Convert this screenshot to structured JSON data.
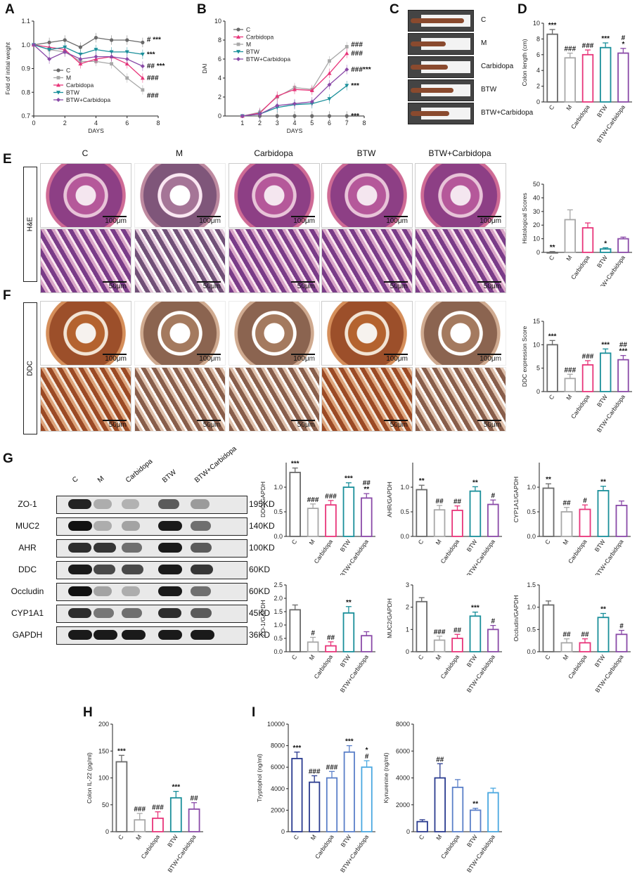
{
  "panel_labels": [
    "A",
    "B",
    "C",
    "D",
    "E",
    "F",
    "G",
    "H",
    "I"
  ],
  "colors": {
    "C": "#6a6a6a",
    "M": "#a8a8a8",
    "Carbidopa": "#e8357a",
    "BTW": "#1a8f9a",
    "BTW+Carbidopa": "#8a4aa8",
    "navy": "#2a3b8f",
    "blue": "#5a7fc8",
    "light_blue": "#4aa8e0"
  },
  "chart_data": [
    {
      "id": "A",
      "type": "line",
      "xlabel": "DAYS",
      "ylabel": "Fold of initial weight",
      "xlim": [
        0,
        8
      ],
      "ylim": [
        0.7,
        1.1
      ],
      "xticks": [
        "0",
        "2",
        "4",
        "6",
        "8"
      ],
      "yticks": [
        "0.7",
        "0.8",
        "0.9",
        "1.0",
        "1.1"
      ],
      "x": [
        0,
        1,
        2,
        3,
        4,
        5,
        6,
        7
      ],
      "legend": [
        "C",
        "M",
        "Carbidopa",
        "BTW",
        "BTW+Carbidopa"
      ],
      "series": [
        {
          "name": "C",
          "values": [
            1.0,
            1.01,
            1.02,
            0.99,
            1.03,
            1.02,
            1.02,
            1.01
          ],
          "sig": "# ***"
        },
        {
          "name": "M",
          "values": [
            1.0,
            0.98,
            0.97,
            0.93,
            0.93,
            0.92,
            0.86,
            0.81
          ],
          "sig": "###"
        },
        {
          "name": "Carbidopa",
          "values": [
            1.0,
            0.99,
            0.98,
            0.92,
            0.94,
            0.95,
            0.92,
            0.86
          ],
          "sig": "###"
        },
        {
          "name": "BTW",
          "values": [
            1.0,
            0.98,
            0.99,
            0.96,
            0.98,
            0.97,
            0.97,
            0.96
          ],
          "sig": "***"
        },
        {
          "name": "BTW+Carbidopa",
          "values": [
            1.0,
            0.94,
            0.97,
            0.94,
            0.95,
            0.95,
            0.94,
            0.91
          ],
          "sig": "## ***"
        }
      ]
    },
    {
      "id": "B",
      "type": "line",
      "xlabel": "DAYS",
      "ylabel": "DAI",
      "xlim": [
        0,
        8
      ],
      "ylim": [
        0,
        10
      ],
      "xticks": [
        "1",
        "2",
        "3",
        "4",
        "5",
        "6",
        "7",
        "8"
      ],
      "yticks": [
        "0",
        "2",
        "4",
        "6",
        "8",
        "10"
      ],
      "x": [
        1,
        2,
        3,
        4,
        5,
        6,
        7
      ],
      "legend": [
        "C",
        "Carbidopa",
        "M",
        "BTW",
        "BTW+Carbidopa"
      ],
      "series": [
        {
          "name": "C",
          "values": [
            0,
            0,
            0,
            0,
            0,
            0,
            0
          ],
          "sig": "***"
        },
        {
          "name": "M",
          "values": [
            0,
            0.4,
            2.0,
            3.0,
            2.8,
            5.8,
            7.3
          ],
          "sig": "###"
        },
        {
          "name": "Carbidopa",
          "values": [
            0,
            0.3,
            2.1,
            2.8,
            2.7,
            4.5,
            6.6
          ],
          "sig": "###"
        },
        {
          "name": "BTW",
          "values": [
            0,
            0.2,
            0.9,
            1.2,
            1.3,
            1.8,
            3.2
          ],
          "sig": "***"
        },
        {
          "name": "BTW+Carbidopa",
          "values": [
            0,
            0.2,
            1.1,
            1.3,
            1.5,
            3.3,
            4.9
          ],
          "sig": "###***"
        }
      ]
    },
    {
      "id": "D",
      "type": "bar",
      "ylabel": "Colon length (cm)",
      "ylim": [
        0,
        10
      ],
      "yticks": [
        "0",
        "2",
        "4",
        "6",
        "8",
        "10"
      ],
      "categories": [
        "C",
        "M",
        "Carbidopa",
        "BTW",
        "BTW+Carbidopa"
      ],
      "values": [
        8.6,
        5.6,
        6.0,
        6.9,
        6.2
      ],
      "sig": [
        "***",
        "###",
        "###",
        "***",
        "#\n*"
      ]
    },
    {
      "id": "E",
      "type": "bar",
      "ylabel": "Histological Scores",
      "ylim": [
        0,
        50
      ],
      "yticks": [
        "0",
        "10",
        "20",
        "30",
        "40",
        "50"
      ],
      "categories": [
        "C",
        "M",
        "Carbidopa",
        "BTW",
        "BTW+Carbidopa"
      ],
      "values": [
        0,
        24,
        18,
        2.5,
        10
      ],
      "sig": [
        "**",
        "",
        "",
        "*",
        ""
      ]
    },
    {
      "id": "F",
      "type": "bar",
      "ylabel": "DDC expression Score",
      "ylim": [
        0,
        15
      ],
      "yticks": [
        "0",
        "5",
        "10",
        "15"
      ],
      "categories": [
        "C",
        "M",
        "Carbidopa",
        "BTW",
        "BTW+Carbidopa"
      ],
      "values": [
        10,
        2.8,
        5.7,
        8.2,
        6.8
      ],
      "sig": [
        "***",
        "###",
        "###",
        "***",
        "##\n***"
      ]
    },
    {
      "id": "G1",
      "type": "bar",
      "ylabel": "DDC/GAPDH",
      "ylim": [
        0,
        1.5
      ],
      "yticks": [
        "0.0",
        "0.5",
        "1.0"
      ],
      "categories": [
        "C",
        "M",
        "Carbidopa",
        "BTW",
        "BTW+Carbidopa"
      ],
      "values": [
        1.3,
        0.57,
        0.64,
        1.0,
        0.78
      ],
      "sig": [
        "***",
        "###",
        "###",
        "***",
        "##\n**"
      ]
    },
    {
      "id": "G2",
      "type": "bar",
      "ylabel": "AHR/GAPDH",
      "ylim": [
        0,
        1.5
      ],
      "yticks": [
        "0.0",
        "0.5",
        "1.0"
      ],
      "categories": [
        "C",
        "M",
        "Carbidopa",
        "BTW",
        "BTW+Carbidopa"
      ],
      "values": [
        0.95,
        0.54,
        0.53,
        0.92,
        0.65
      ],
      "sig": [
        "**",
        "##",
        "##",
        "**",
        "#"
      ]
    },
    {
      "id": "G3",
      "type": "bar",
      "ylabel": "CYP1A1/GAPDH",
      "ylim": [
        0,
        1.5
      ],
      "yticks": [
        "0.0",
        "0.5",
        "1.0"
      ],
      "categories": [
        "C",
        "M",
        "Carbidopa",
        "BTW",
        "BTW+Carbidopa"
      ],
      "values": [
        0.98,
        0.5,
        0.55,
        0.93,
        0.63
      ],
      "sig": [
        "**",
        "##",
        "#",
        "**",
        ""
      ]
    },
    {
      "id": "G4",
      "type": "bar",
      "ylabel": "ZO-1/GAPDH",
      "ylim": [
        0,
        2.5
      ],
      "yticks": [
        "0.0",
        "0.5",
        "1.0",
        "1.5",
        "2.0",
        "2.5"
      ],
      "categories": [
        "C",
        "M",
        "Carbidopa",
        "BTW",
        "BTW+Carbidopa"
      ],
      "values": [
        1.57,
        0.36,
        0.22,
        1.45,
        0.6
      ],
      "sig": [
        "",
        "#",
        "##",
        "**",
        ""
      ]
    },
    {
      "id": "G5",
      "type": "bar",
      "ylabel": "MUC2/GAPDH",
      "ylim": [
        0,
        3
      ],
      "yticks": [
        "0",
        "1",
        "2",
        "3"
      ],
      "categories": [
        "C",
        "M",
        "Carbidopa",
        "BTW",
        "BTW+Carbidopa"
      ],
      "values": [
        2.25,
        0.52,
        0.6,
        1.6,
        1.0
      ],
      "sig": [
        "",
        "###",
        "##",
        "***",
        "#"
      ]
    },
    {
      "id": "G6",
      "type": "bar",
      "ylabel": "Occludin/GAPDH",
      "ylim": [
        0,
        1.5
      ],
      "yticks": [
        "0.0",
        "0.5",
        "1.0",
        "1.5"
      ],
      "categories": [
        "C",
        "M",
        "Carbidopa",
        "BTW",
        "BTW+Carbidopa"
      ],
      "values": [
        1.05,
        0.2,
        0.2,
        0.77,
        0.39
      ],
      "sig": [
        "",
        "##",
        "##",
        "**",
        "#"
      ]
    },
    {
      "id": "H",
      "type": "bar",
      "ylabel": "Colon IL-22 (pg/ml)",
      "ylim": [
        0,
        200
      ],
      "yticks": [
        "0",
        "50",
        "100",
        "150",
        "200"
      ],
      "categories": [
        "C",
        "M",
        "Carbidopa",
        "BTW",
        "BTW+Carbidopa"
      ],
      "values": [
        130,
        22,
        25,
        63,
        42
      ],
      "sig": [
        "***",
        "###",
        "###",
        "***",
        "##"
      ]
    },
    {
      "id": "I1",
      "type": "bar",
      "ylabel": "Tryptophol (ng/ml)",
      "ylim": [
        0,
        10000
      ],
      "yticks": [
        "0",
        "2000",
        "4000",
        "6000",
        "8000",
        "10000"
      ],
      "categories": [
        "C",
        "M",
        "Carbidopa",
        "BTW",
        "BTW+Carbidopa"
      ],
      "values": [
        6800,
        4600,
        5000,
        7400,
        6000
      ],
      "sig": [
        "***",
        "###",
        "###",
        "***",
        "*\n#"
      ]
    },
    {
      "id": "I2",
      "type": "bar",
      "ylabel": "Kynurenine (ng/ml)",
      "ylim": [
        0,
        8000
      ],
      "yticks": [
        "0",
        "2000",
        "4000",
        "6000",
        "8000"
      ],
      "categories": [
        "C",
        "M",
        "Carbidopa",
        "BTW",
        "BTW+Carbidopa"
      ],
      "values": [
        750,
        4000,
        3300,
        1600,
        2900
      ],
      "sig": [
        "",
        "##",
        "",
        "**",
        ""
      ]
    }
  ],
  "colon_photos": {
    "labels": [
      "C",
      "M",
      "Carbidopa",
      "BTW",
      "BTW+Carbidopa"
    ],
    "lengths_cm": [
      8.6,
      5.6,
      6.0,
      6.9,
      6.2
    ]
  },
  "histology": {
    "columns": [
      "C",
      "M",
      "Carbidopa",
      "BTW",
      "BTW+Carbidopa"
    ],
    "rows": [
      "H&E",
      "DDC"
    ],
    "scale_low": "100μm",
    "scale_high": "50μm"
  },
  "western_blot": {
    "lanes": [
      "C",
      "M",
      "Carbidopa",
      "BTW",
      "BTW+Carbidopa"
    ],
    "rows": [
      {
        "protein": "ZO-1",
        "kd": "195KD",
        "intensity": [
          0.9,
          0.15,
          0.12,
          0.6,
          0.25
        ]
      },
      {
        "protein": "MUC2",
        "kd": "140KD",
        "intensity": [
          1.0,
          0.15,
          0.2,
          0.95,
          0.5
        ]
      },
      {
        "protein": "AHR",
        "kd": "100KD",
        "intensity": [
          0.85,
          0.8,
          0.5,
          0.95,
          0.6
        ]
      },
      {
        "protein": "DDC",
        "kd": "60KD",
        "intensity": [
          0.95,
          0.7,
          0.7,
          0.95,
          0.8
        ]
      },
      {
        "protein": "Occludin",
        "kd": "60KD",
        "intensity": [
          1.0,
          0.2,
          0.15,
          0.95,
          0.5
        ]
      },
      {
        "protein": "CYP1A1",
        "kd": "45KD",
        "intensity": [
          0.85,
          0.45,
          0.5,
          0.85,
          0.6
        ]
      },
      {
        "protein": "GAPDH",
        "kd": "36KD",
        "intensity": [
          0.95,
          0.95,
          0.95,
          0.95,
          0.95
        ]
      }
    ]
  }
}
